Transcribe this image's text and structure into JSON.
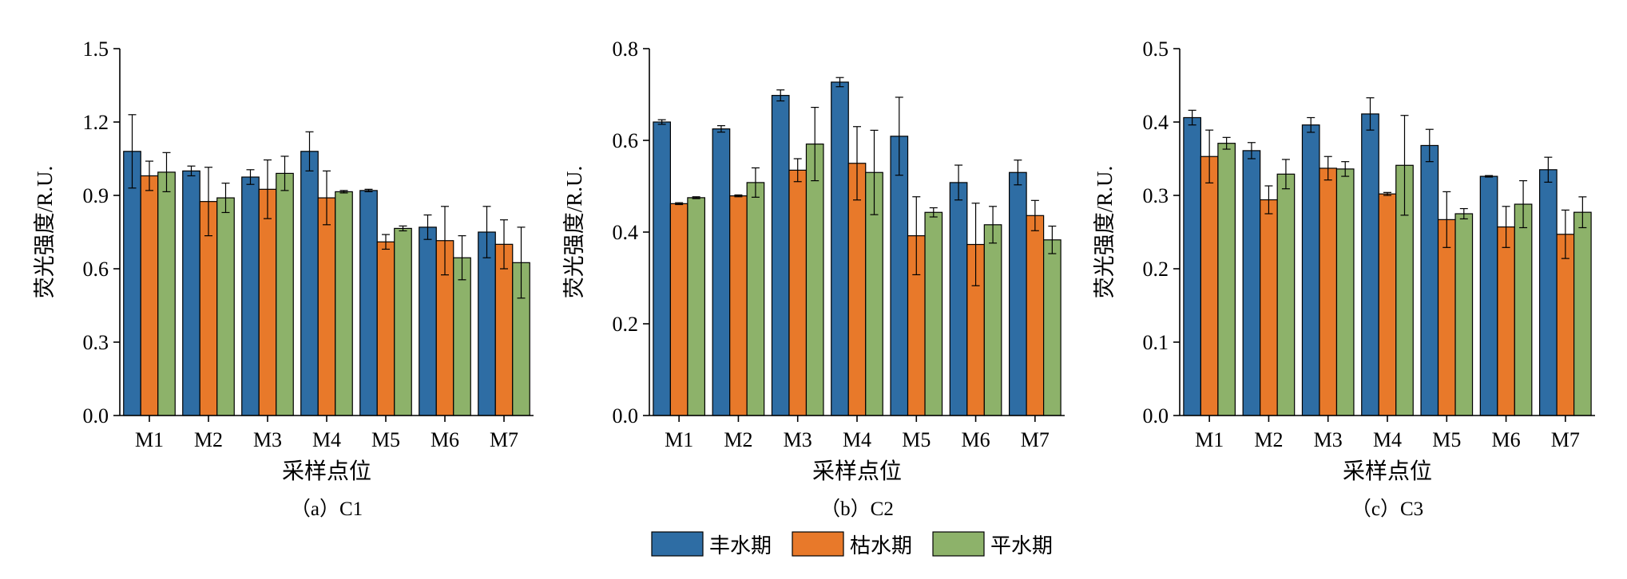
{
  "legend": [
    {
      "label": "丰水期",
      "color": "#2E6DA4"
    },
    {
      "label": "枯水期",
      "color": "#E8792A"
    },
    {
      "label": "平水期",
      "color": "#8DB26A"
    }
  ],
  "chart_data": [
    {
      "type": "bar",
      "title": "（a）C1",
      "xlabel": "采样点位",
      "ylabel": "荧光强度/R.U.",
      "ylim": [
        0,
        1.5
      ],
      "yticks": [
        "0.0",
        "0.3",
        "0.6",
        "0.9",
        "1.2",
        "1.5"
      ],
      "categories": [
        "M1",
        "M2",
        "M3",
        "M4",
        "M5",
        "M6",
        "M7"
      ],
      "series": [
        {
          "name": "丰水期",
          "values": [
            1.08,
            1.0,
            0.975,
            1.08,
            0.92,
            0.77,
            0.75
          ],
          "errors": [
            0.15,
            0.02,
            0.03,
            0.08,
            0.005,
            0.05,
            0.105
          ]
        },
        {
          "name": "枯水期",
          "values": [
            0.98,
            0.875,
            0.925,
            0.89,
            0.71,
            0.715,
            0.7
          ],
          "errors": [
            0.06,
            0.14,
            0.12,
            0.11,
            0.03,
            0.14,
            0.1
          ]
        },
        {
          "name": "平水期",
          "values": [
            0.995,
            0.89,
            0.99,
            0.915,
            0.765,
            0.645,
            0.625
          ],
          "errors": [
            0.08,
            0.06,
            0.07,
            0.005,
            0.01,
            0.09,
            0.145
          ]
        }
      ]
    },
    {
      "type": "bar",
      "title": "（b）C2",
      "xlabel": "采样点位",
      "ylabel": "荧光强度/R.U.",
      "ylim": [
        0,
        0.8
      ],
      "yticks": [
        "0.0",
        "0.2",
        "0.4",
        "0.6",
        "0.8"
      ],
      "categories": [
        "M1",
        "M2",
        "M3",
        "M4",
        "M5",
        "M6",
        "M7"
      ],
      "series": [
        {
          "name": "丰水期",
          "values": [
            0.64,
            0.625,
            0.698,
            0.727,
            0.609,
            0.508,
            0.53
          ],
          "errors": [
            0.005,
            0.007,
            0.012,
            0.01,
            0.085,
            0.038,
            0.027
          ]
        },
        {
          "name": "枯水期",
          "values": [
            0.462,
            0.479,
            0.535,
            0.55,
            0.392,
            0.373,
            0.436
          ],
          "errors": [
            0.002,
            0.002,
            0.025,
            0.08,
            0.085,
            0.09,
            0.033
          ]
        },
        {
          "name": "平水期",
          "values": [
            0.475,
            0.508,
            0.592,
            0.53,
            0.443,
            0.416,
            0.383
          ],
          "errors": [
            0.002,
            0.032,
            0.08,
            0.092,
            0.01,
            0.04,
            0.03
          ]
        }
      ]
    },
    {
      "type": "bar",
      "title": "（c）C3",
      "xlabel": "采样点位",
      "ylabel": "荧光强度/R.U.",
      "ylim": [
        0,
        0.5
      ],
      "yticks": [
        "0.0",
        "0.1",
        "0.2",
        "0.3",
        "0.4",
        "0.5"
      ],
      "categories": [
        "M1",
        "M2",
        "M3",
        "M4",
        "M5",
        "M6",
        "M7"
      ],
      "series": [
        {
          "name": "丰水期",
          "values": [
            0.406,
            0.361,
            0.396,
            0.411,
            0.368,
            0.326,
            0.335
          ],
          "errors": [
            0.01,
            0.011,
            0.01,
            0.022,
            0.022,
            0.001,
            0.017
          ]
        },
        {
          "name": "枯水期",
          "values": [
            0.353,
            0.294,
            0.337,
            0.302,
            0.267,
            0.257,
            0.247
          ],
          "errors": [
            0.036,
            0.019,
            0.016,
            0.002,
            0.038,
            0.028,
            0.033
          ]
        },
        {
          "name": "平水期",
          "values": [
            0.371,
            0.329,
            0.336,
            0.341,
            0.275,
            0.288,
            0.277
          ],
          "errors": [
            0.008,
            0.02,
            0.01,
            0.068,
            0.007,
            0.032,
            0.021
          ]
        }
      ]
    }
  ]
}
